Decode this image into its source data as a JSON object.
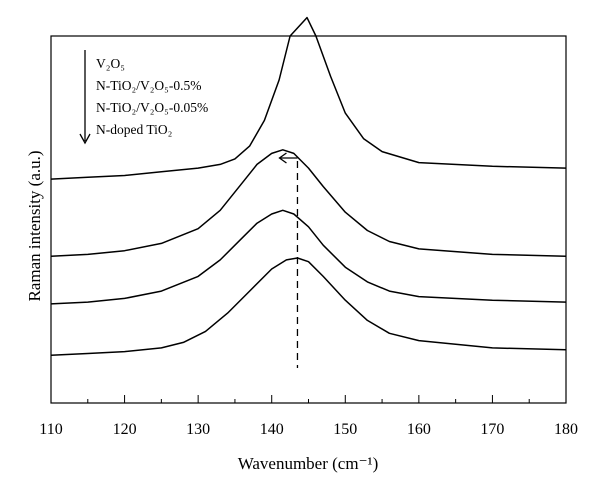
{
  "chart_data": {
    "type": "line",
    "title": "",
    "xlabel": "Wavenumber (cm⁻¹)",
    "ylabel": "Raman intensity (a.u.)",
    "xlim": [
      110,
      180
    ],
    "xticks": [
      "110",
      "120",
      "130",
      "140",
      "150",
      "160",
      "170",
      "180"
    ],
    "yticks": [],
    "grid": false,
    "legend_position": "top-left",
    "legend_entries": [
      "V₂O₅",
      "N-TiO₂/V₂O₅-0.5%",
      "N-TiO₂/V₂O₅-0.05%",
      "N-doped TiO₂"
    ],
    "legend_arrow": "down",
    "annotations": {
      "dashed_line_x": 143.5,
      "shift_arrow_direction": "left"
    },
    "series": [
      {
        "name": "V₂O₅",
        "x": [
          110,
          115,
          120,
          125,
          130,
          133,
          135,
          137,
          139,
          141,
          142.5,
          144.8,
          146,
          148,
          150,
          152.5,
          155,
          160,
          170,
          180
        ],
        "y": [
          0.61,
          0.615,
          0.62,
          0.63,
          0.64,
          0.65,
          0.665,
          0.7,
          0.77,
          0.88,
          1.0,
          1.05,
          1.0,
          0.89,
          0.79,
          0.72,
          0.685,
          0.655,
          0.645,
          0.64
        ]
      },
      {
        "name": "N-TiO₂/V₂O₅-0.5%",
        "x": [
          110,
          115,
          120,
          125,
          130,
          133,
          136,
          138,
          140,
          141.5,
          143,
          145,
          147,
          150,
          153,
          156,
          160,
          170,
          180
        ],
        "y": [
          0.4,
          0.405,
          0.415,
          0.435,
          0.475,
          0.525,
          0.6,
          0.65,
          0.68,
          0.69,
          0.68,
          0.64,
          0.59,
          0.52,
          0.47,
          0.44,
          0.42,
          0.405,
          0.4
        ]
      },
      {
        "name": "N-TiO₂/V₂O₅-0.05%",
        "x": [
          110,
          115,
          120,
          125,
          130,
          133,
          136,
          138,
          140,
          141.5,
          143,
          145,
          147,
          150,
          153,
          156,
          160,
          170,
          180
        ],
        "y": [
          0.27,
          0.275,
          0.285,
          0.305,
          0.345,
          0.39,
          0.45,
          0.49,
          0.515,
          0.525,
          0.515,
          0.48,
          0.43,
          0.37,
          0.33,
          0.305,
          0.29,
          0.28,
          0.275
        ]
      },
      {
        "name": "N-doped TiO₂",
        "x": [
          110,
          115,
          120,
          125,
          128,
          131,
          134,
          137,
          140,
          142,
          143.5,
          145,
          147,
          150,
          153,
          156,
          160,
          170,
          180
        ],
        "y": [
          0.13,
          0.135,
          0.14,
          0.15,
          0.165,
          0.195,
          0.245,
          0.305,
          0.365,
          0.39,
          0.395,
          0.385,
          0.345,
          0.28,
          0.225,
          0.19,
          0.17,
          0.15,
          0.145
        ]
      }
    ]
  }
}
